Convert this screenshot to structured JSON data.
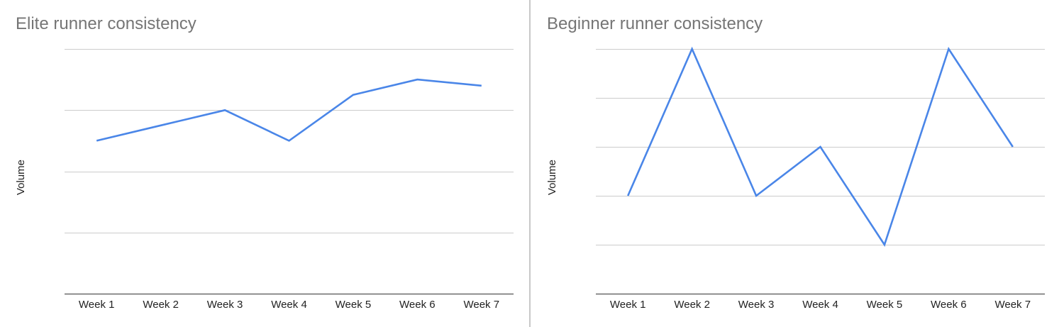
{
  "chart_data": [
    {
      "type": "line",
      "title": "Elite runner consistency",
      "xlabel": "",
      "ylabel": "Volume",
      "categories": [
        "Week 1",
        "Week 2",
        "Week 3",
        "Week 4",
        "Week 5",
        "Week 6",
        "Week 7"
      ],
      "series": [
        {
          "values": [
            2.5,
            2.75,
            3.0,
            2.5,
            3.25,
            3.5,
            3.4
          ]
        }
      ],
      "ylim": [
        0,
        4
      ],
      "ytick_count": 5,
      "grid": true,
      "legend": "none",
      "color": "#4a86e8"
    },
    {
      "type": "line",
      "title": "Beginner runner consistency",
      "xlabel": "",
      "ylabel": "Volume",
      "categories": [
        "Week 1",
        "Week 2",
        "Week 3",
        "Week 4",
        "Week 5",
        "Week 6",
        "Week 7"
      ],
      "series": [
        {
          "values": [
            2,
            5,
            2,
            3,
            1,
            5,
            3
          ]
        }
      ],
      "ylim": [
        0,
        5
      ],
      "ytick_count": 6,
      "grid": true,
      "legend": "none",
      "color": "#4a86e8"
    }
  ]
}
